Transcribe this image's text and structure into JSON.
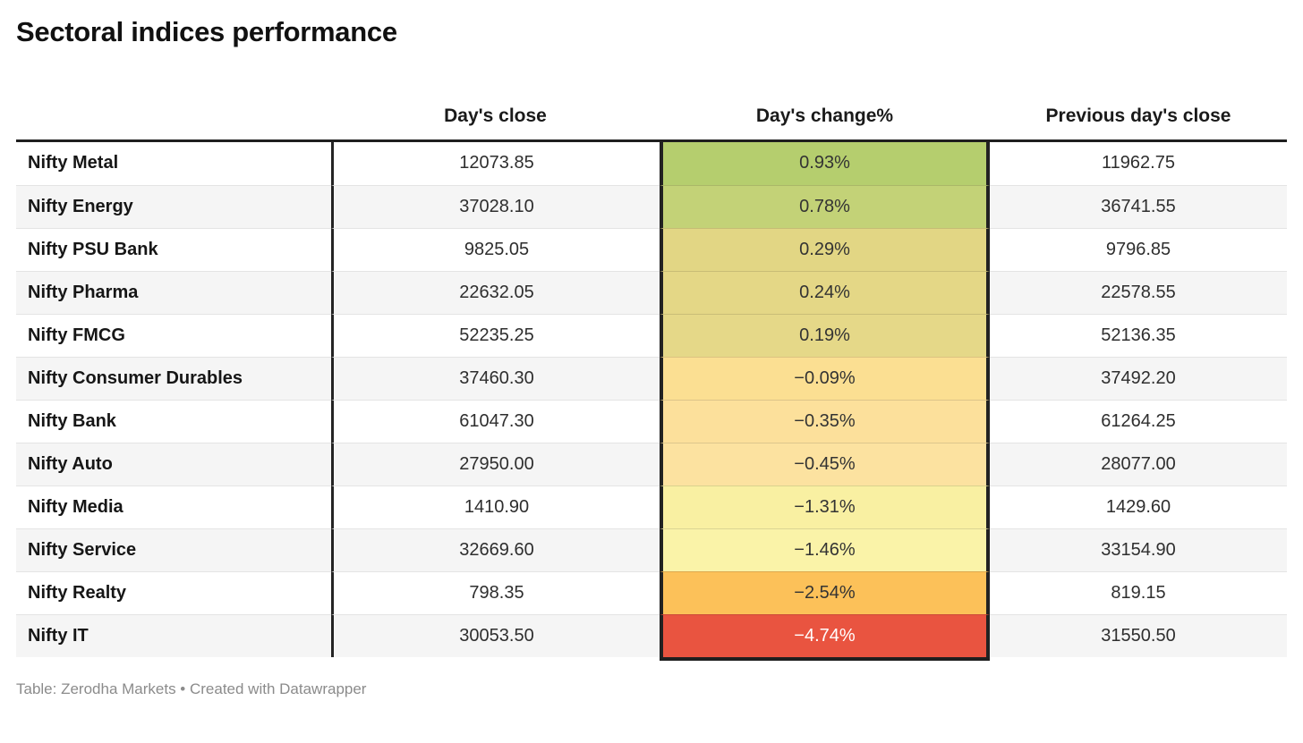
{
  "title": "Sectoral indices performance",
  "header": {
    "col_close": "Day's close",
    "col_change": "Day's change%",
    "col_prev": "Previous day's close"
  },
  "rows": [
    {
      "name": "Nifty Metal",
      "close": "12073.85",
      "change": "0.93%",
      "prev": "11962.75",
      "bg": "#b5ce6e",
      "fg": "#333333"
    },
    {
      "name": "Nifty Energy",
      "close": "37028.10",
      "change": "0.78%",
      "prev": "36741.55",
      "bg": "#c3d277",
      "fg": "#333333"
    },
    {
      "name": "Nifty PSU Bank",
      "close": "9825.05",
      "change": "0.29%",
      "prev": "9796.85",
      "bg": "#e2d684",
      "fg": "#333333"
    },
    {
      "name": "Nifty Pharma",
      "close": "22632.05",
      "change": "0.24%",
      "prev": "22578.55",
      "bg": "#e4d786",
      "fg": "#333333"
    },
    {
      "name": "Nifty FMCG",
      "close": "52235.25",
      "change": "0.19%",
      "prev": "52136.35",
      "bg": "#e5d888",
      "fg": "#333333"
    },
    {
      "name": "Nifty Consumer Durables",
      "close": "37460.30",
      "change": "−0.09%",
      "prev": "37492.20",
      "bg": "#fbdf92",
      "fg": "#333333"
    },
    {
      "name": "Nifty Bank",
      "close": "61047.30",
      "change": "−0.35%",
      "prev": "61264.25",
      "bg": "#fce09b",
      "fg": "#333333"
    },
    {
      "name": "Nifty Auto",
      "close": "27950.00",
      "change": "−0.45%",
      "prev": "28077.00",
      "bg": "#fce2a0",
      "fg": "#333333"
    },
    {
      "name": "Nifty Media",
      "close": "1410.90",
      "change": "−1.31%",
      "prev": "1429.60",
      "bg": "#f9f0a2",
      "fg": "#333333"
    },
    {
      "name": "Nifty Service",
      "close": "32669.60",
      "change": "−1.46%",
      "prev": "33154.90",
      "bg": "#faf3a8",
      "fg": "#333333"
    },
    {
      "name": "Nifty Realty",
      "close": "798.35",
      "change": "−2.54%",
      "prev": "819.15",
      "bg": "#fcc159",
      "fg": "#333333"
    },
    {
      "name": "Nifty IT",
      "close": "30053.50",
      "change": "−4.74%",
      "prev": "31550.50",
      "bg": "#e95440",
      "fg": "#ffffff"
    }
  ],
  "footer": {
    "text": "Table: Zerodha Markets • Created with Datawrapper"
  },
  "colors": {
    "top_border": "#1f1f1f",
    "row_stripe": "#f5f5f5",
    "row_separator": "#e4e4e4",
    "heatmap_positive_max": "#b5ce6e",
    "heatmap_negative_max": "#e95440"
  },
  "chart_data": {
    "type": "table",
    "title": "Sectoral indices performance",
    "columns": [
      "Day's close",
      "Day's change%",
      "Previous day's close"
    ],
    "heatmap_column": "Day's change%",
    "heatmap_scale": "green (positive) to yellow to red (negative)",
    "rows": [
      {
        "index": "Nifty Metal",
        "days_close": 12073.85,
        "days_change_pct": 0.93,
        "previous_close": 11962.75
      },
      {
        "index": "Nifty Energy",
        "days_close": 37028.1,
        "days_change_pct": 0.78,
        "previous_close": 36741.55
      },
      {
        "index": "Nifty PSU Bank",
        "days_close": 9825.05,
        "days_change_pct": 0.29,
        "previous_close": 9796.85
      },
      {
        "index": "Nifty Pharma",
        "days_close": 22632.05,
        "days_change_pct": 0.24,
        "previous_close": 22578.55
      },
      {
        "index": "Nifty FMCG",
        "days_close": 52235.25,
        "days_change_pct": 0.19,
        "previous_close": 52136.35
      },
      {
        "index": "Nifty Consumer Durables",
        "days_close": 37460.3,
        "days_change_pct": -0.09,
        "previous_close": 37492.2
      },
      {
        "index": "Nifty Bank",
        "days_close": 61047.3,
        "days_change_pct": -0.35,
        "previous_close": 61264.25
      },
      {
        "index": "Nifty Auto",
        "days_close": 27950.0,
        "days_change_pct": -0.45,
        "previous_close": 28077.0
      },
      {
        "index": "Nifty Media",
        "days_close": 1410.9,
        "days_change_pct": -1.31,
        "previous_close": 1429.6
      },
      {
        "index": "Nifty Service",
        "days_close": 32669.6,
        "days_change_pct": -1.46,
        "previous_close": 33154.9
      },
      {
        "index": "Nifty Realty",
        "days_close": 798.35,
        "days_change_pct": -2.54,
        "previous_close": 819.15
      },
      {
        "index": "Nifty IT",
        "days_close": 30053.5,
        "days_change_pct": -4.74,
        "previous_close": 31550.5
      }
    ]
  }
}
